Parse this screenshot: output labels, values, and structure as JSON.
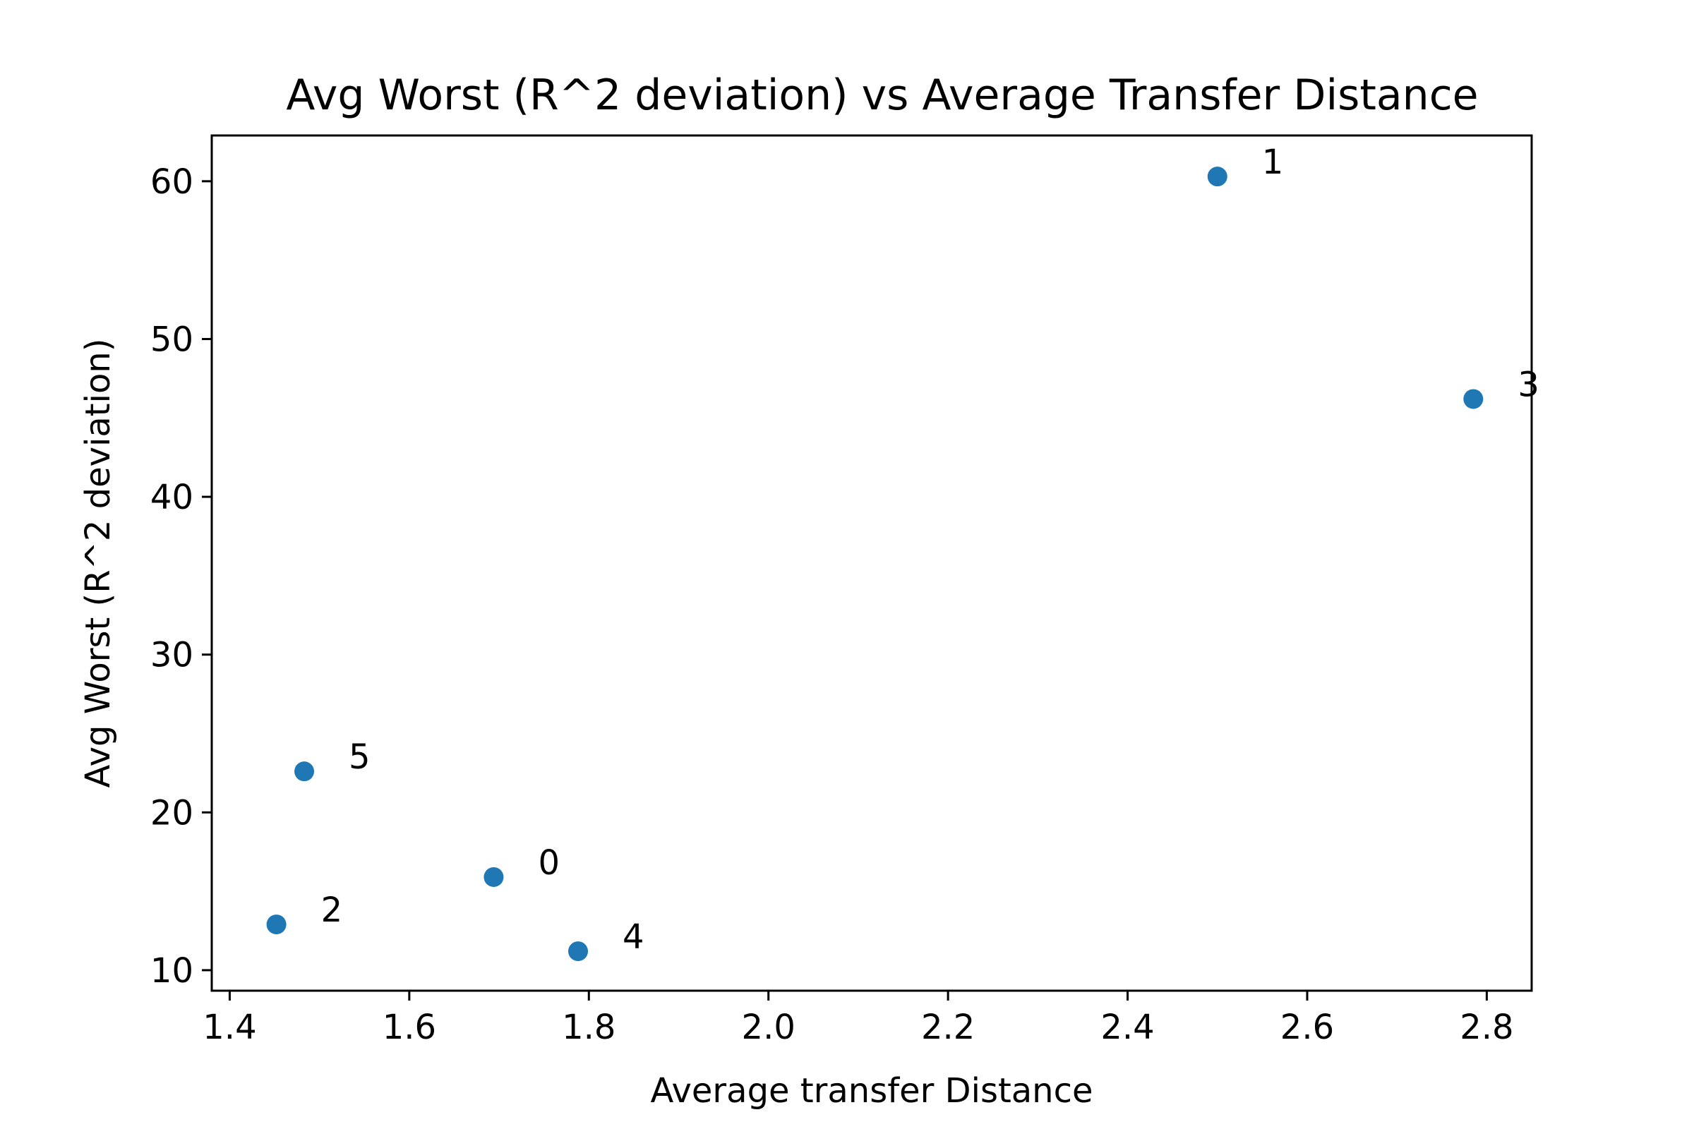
{
  "chart_data": {
    "type": "scatter",
    "title": "Avg Worst (R^2 deviation) vs Average Transfer Distance",
    "xlabel": "Average transfer Distance",
    "ylabel": "Avg Worst (R^2 deviation)",
    "xlim": [
      1.38,
      2.85
    ],
    "ylim": [
      8.7,
      62.9
    ],
    "xticks": [
      1.4,
      1.6,
      1.8,
      2.0,
      2.2,
      2.4,
      2.6,
      2.8
    ],
    "xtick_labels": [
      "1.4",
      "1.6",
      "1.8",
      "2.0",
      "2.2",
      "2.4",
      "2.6",
      "2.8"
    ],
    "yticks": [
      10,
      20,
      30,
      40,
      50,
      60
    ],
    "ytick_labels": [
      "10",
      "20",
      "30",
      "40",
      "50",
      "60"
    ],
    "grid": false,
    "marker_color": "#1f77b4",
    "points": [
      {
        "label": "0",
        "x": 1.694,
        "y": 15.9
      },
      {
        "label": "1",
        "x": 2.5,
        "y": 60.3
      },
      {
        "label": "2",
        "x": 1.452,
        "y": 12.9
      },
      {
        "label": "3",
        "x": 2.785,
        "y": 46.2
      },
      {
        "label": "4",
        "x": 1.788,
        "y": 11.2
      },
      {
        "label": "5",
        "x": 1.483,
        "y": 22.6
      }
    ]
  }
}
